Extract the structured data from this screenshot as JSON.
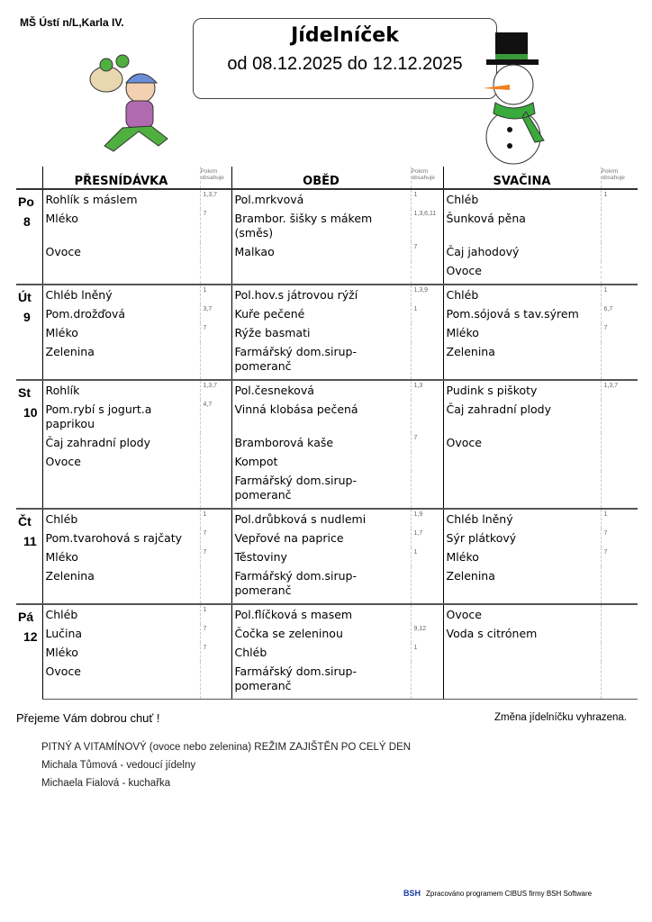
{
  "header": {
    "school": "MŠ Ústí n/L,Karla IV.",
    "title": "Jídelníček",
    "date_range": "od 08.12.2025 do 12.12.2025"
  },
  "columns": {
    "breakfast": "PŘESNÍDÁVKA",
    "lunch": "OBĚD",
    "snack": "SVAČINA",
    "allergen_header": "Pokrm obsahuje"
  },
  "days": [
    {
      "abbr": "Po",
      "num": "8",
      "rows": [
        [
          {
            "t": "Rohlík s máslem",
            "a": "1,3,7"
          },
          {
            "t": "Pol.mrkvová",
            "a": "1"
          },
          {
            "t": "Chléb",
            "a": "1"
          }
        ],
        [
          {
            "t": "Mléko",
            "a": "7"
          },
          {
            "t": "Brambor. šišky s mákem (směs)",
            "a": "1,3,6,11"
          },
          {
            "t": "Šunková pěna",
            "a": ""
          }
        ],
        [
          {
            "t": "Ovoce",
            "a": ""
          },
          {
            "t": "Malkao",
            "a": "7"
          },
          {
            "t": "Čaj jahodový",
            "a": ""
          }
        ],
        [
          {
            "t": "",
            "a": ""
          },
          {
            "t": "",
            "a": ""
          },
          {
            "t": "Ovoce",
            "a": ""
          }
        ]
      ]
    },
    {
      "abbr": "Út",
      "num": "9",
      "rows": [
        [
          {
            "t": "Chléb lněný",
            "a": "1"
          },
          {
            "t": "Pol.hov.s játrovou rýží",
            "a": "1,3,9"
          },
          {
            "t": "Chléb",
            "a": "1"
          }
        ],
        [
          {
            "t": "Pom.drožďová",
            "a": "3,7"
          },
          {
            "t": "Kuře pečené",
            "a": "1"
          },
          {
            "t": "Pom.sójová s tav.sýrem",
            "a": "6,7"
          }
        ],
        [
          {
            "t": "Mléko",
            "a": "7"
          },
          {
            "t": "Rýže basmati",
            "a": ""
          },
          {
            "t": "Mléko",
            "a": "7"
          }
        ],
        [
          {
            "t": "Zelenina",
            "a": ""
          },
          {
            "t": "Farmářský dom.sirup-pomeranč",
            "a": ""
          },
          {
            "t": "Zelenina",
            "a": ""
          }
        ]
      ]
    },
    {
      "abbr": "St",
      "num": "10",
      "rows": [
        [
          {
            "t": "Rohlík",
            "a": "1,3,7"
          },
          {
            "t": "Pol.česneková",
            "a": "1,3"
          },
          {
            "t": "Pudink s piškoty",
            "a": "1,3,7"
          }
        ],
        [
          {
            "t": "Pom.rybí s jogurt.a paprikou",
            "a": "4,7"
          },
          {
            "t": "Vinná klobása pečená",
            "a": ""
          },
          {
            "t": "Čaj zahradní plody",
            "a": ""
          }
        ],
        [
          {
            "t": "Čaj zahradní plody",
            "a": ""
          },
          {
            "t": "Bramborová kaše",
            "a": "7"
          },
          {
            "t": "Ovoce",
            "a": ""
          }
        ],
        [
          {
            "t": "Ovoce",
            "a": ""
          },
          {
            "t": "Kompot",
            "a": ""
          },
          {
            "t": "",
            "a": ""
          }
        ],
        [
          {
            "t": "",
            "a": ""
          },
          {
            "t": "Farmářský dom.sirup-pomeranč",
            "a": ""
          },
          {
            "t": "",
            "a": ""
          }
        ]
      ]
    },
    {
      "abbr": "Čt",
      "num": "11",
      "rows": [
        [
          {
            "t": "Chléb",
            "a": "1"
          },
          {
            "t": "Pol.drůbková s nudlemi",
            "a": "1,9"
          },
          {
            "t": "Chléb lněný",
            "a": "1"
          }
        ],
        [
          {
            "t": "Pom.tvarohová s rajčaty",
            "a": "7"
          },
          {
            "t": "Vepřové na paprice",
            "a": "1,7"
          },
          {
            "t": "Sýr plátkový",
            "a": "7"
          }
        ],
        [
          {
            "t": "Mléko",
            "a": "7"
          },
          {
            "t": "Těstoviny",
            "a": "1"
          },
          {
            "t": "Mléko",
            "a": "7"
          }
        ],
        [
          {
            "t": "Zelenina",
            "a": ""
          },
          {
            "t": "Farmářský dom.sirup-pomeranč",
            "a": ""
          },
          {
            "t": "Zelenina",
            "a": ""
          }
        ]
      ]
    },
    {
      "abbr": "Pá",
      "num": "12",
      "rows": [
        [
          {
            "t": "Chléb",
            "a": "1"
          },
          {
            "t": "Pol.flíčková s masem",
            "a": ""
          },
          {
            "t": "Ovoce",
            "a": ""
          }
        ],
        [
          {
            "t": "Lučina",
            "a": "7"
          },
          {
            "t": "Čočka se zeleninou",
            "a": "9,12"
          },
          {
            "t": "Voda s citrónem",
            "a": ""
          }
        ],
        [
          {
            "t": "Mléko",
            "a": "7"
          },
          {
            "t": "Chléb",
            "a": "1"
          },
          {
            "t": "",
            "a": ""
          }
        ],
        [
          {
            "t": "Ovoce",
            "a": ""
          },
          {
            "t": "Farmářský dom.sirup-pomeranč",
            "a": ""
          },
          {
            "t": "",
            "a": ""
          }
        ]
      ]
    }
  ],
  "footer": {
    "wish": "Přejeme Vám dobrou chuť !",
    "change_note": "Změna jídelníčku vyhrazena.",
    "notes": [
      "PITNÝ A VITAMÍNOVÝ (ovoce nebo zelenina) REŽIM ZAJIŠTĚN PO CELÝ DEN",
      "Michala Tůmová - vedoucí jídelny",
      "Michaela Fialová - kuchařka"
    ],
    "software_logo": "BSH",
    "software": "Zpracováno programem CIBUS firmy BSH Software"
  }
}
